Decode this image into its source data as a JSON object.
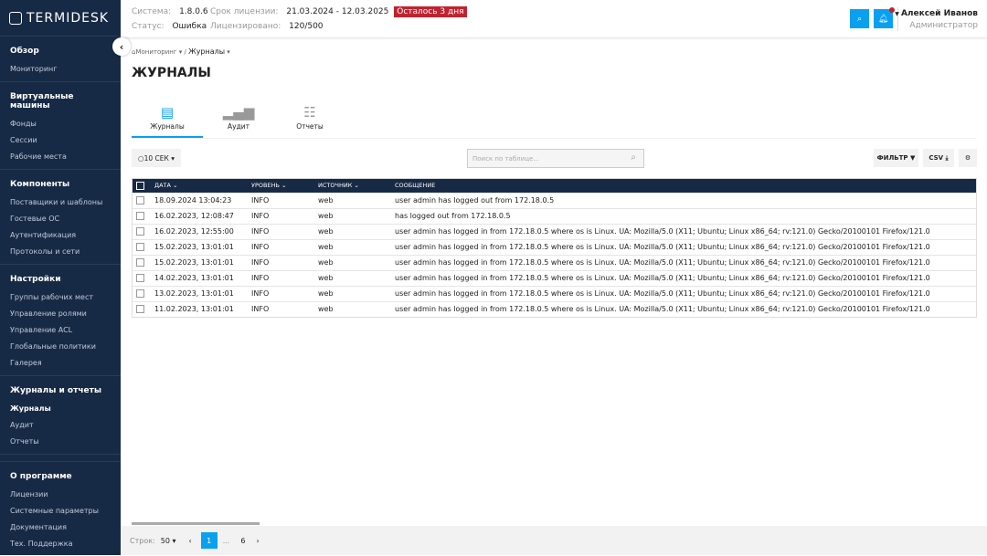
{
  "brand": "TERMIDESK",
  "sidebar": {
    "sections": [
      {
        "title": "Обзор",
        "items": [
          "Мониторинг"
        ]
      },
      {
        "title": "Виртуальные машины",
        "items": [
          "Фонды",
          "Сессии",
          "Рабочие места"
        ]
      },
      {
        "title": "Компоненты",
        "items": [
          "Поставщики и шаблоны",
          "Гостевые ОС",
          "Аутентификация",
          "Протоколы и сети"
        ]
      },
      {
        "title": "Настройки",
        "items": [
          "Группы рабочих мест",
          "Управление ролями",
          "Управление ACL",
          "Глобальные политики",
          "Галерея"
        ]
      },
      {
        "title": "Журналы и отчеты",
        "items": [
          "Журналы",
          "Аудит",
          "Отчеты"
        ],
        "active": "Журналы"
      },
      {
        "title": "О программе",
        "items": [
          "Лицензии",
          "Системные параметры",
          "Документация",
          "Тех. Поддержка"
        ]
      }
    ]
  },
  "header": {
    "system_label": "Система:",
    "system": "1.8.0.6",
    "license_label": "Срок лицензии:",
    "license": "21.03.2024 - 12.03.2025",
    "license_badge": "Осталось 3 дня",
    "status_label": "Статус:",
    "status": "Ошибка",
    "licensed_label": "Лицензировано:",
    "licensed": "120/500",
    "user_name": "Алексей Иванов",
    "user_role": "Администратор",
    "badge_color": "#c0232f",
    "accent": "#0aa0f0"
  },
  "breadcrumb": {
    "home": "Мониторинг",
    "current": "Журналы"
  },
  "page_title": "ЖУРНАЛЫ",
  "tabs": [
    {
      "label": "Журналы",
      "icon": "book-icon",
      "active": true
    },
    {
      "label": "Аудит",
      "icon": "bar-chart-icon"
    },
    {
      "label": "Отчеты",
      "icon": "clipboard-icon"
    }
  ],
  "toolbar": {
    "refresh": "10 СЕК",
    "search_placeholder": "Поиск по таблице...",
    "filter": "ФИЛЬТР",
    "csv": "CSV"
  },
  "table": {
    "columns": [
      "ДАТА",
      "УРОВЕНЬ",
      "ИСТОЧНИК",
      "СООБЩЕНИЕ"
    ],
    "rows": [
      [
        "18.09.2024 13:04:23",
        "INFO",
        "web",
        "user admin has logged out from 172.18.0.5"
      ],
      [
        "16.02.2023, 12:08:47",
        "INFO",
        "web",
        "has logged out from 172.18.0.5"
      ],
      [
        "16.02.2023, 12:55:00",
        "INFO",
        "web",
        "user admin has logged in from 172.18.0.5 where os is Linux. UA: Mozilla/5.0 (X11; Ubuntu; Linux x86_64; rv:121.0) Gecko/20100101 Firefox/121.0"
      ],
      [
        "15.02.2023, 13:01:01",
        "INFO",
        "web",
        "user admin has logged in from 172.18.0.5 where os is Linux. UA: Mozilla/5.0 (X11; Ubuntu; Linux x86_64; rv:121.0) Gecko/20100101 Firefox/121.0"
      ],
      [
        "15.02.2023, 13:01:01",
        "INFO",
        "web",
        "user admin has logged in from 172.18.0.5 where os is Linux. UA: Mozilla/5.0 (X11; Ubuntu; Linux x86_64; rv:121.0) Gecko/20100101 Firefox/121.0"
      ],
      [
        "14.02.2023, 13:01:01",
        "INFO",
        "web",
        "user admin has logged in from 172.18.0.5 where os is Linux. UA: Mozilla/5.0 (X11; Ubuntu; Linux x86_64; rv:121.0) Gecko/20100101 Firefox/121.0"
      ],
      [
        "13.02.2023, 13:01:01",
        "INFO",
        "web",
        "user admin has logged in from 172.18.0.5 where os is Linux. UA: Mozilla/5.0 (X11; Ubuntu; Linux x86_64; rv:121.0) Gecko/20100101 Firefox/121.0"
      ],
      [
        "11.02.2023, 13:01:01",
        "INFO",
        "web",
        "user admin has logged in from 172.18.0.5 where os is Linux. UA: Mozilla/5.0 (X11; Ubuntu; Linux x86_64; rv:121.0) Gecko/20100101 Firefox/121.0"
      ]
    ]
  },
  "pagination": {
    "rows_label": "Строк:",
    "rows_value": "50",
    "current": "1",
    "ellipsis": "...",
    "last": "6"
  }
}
